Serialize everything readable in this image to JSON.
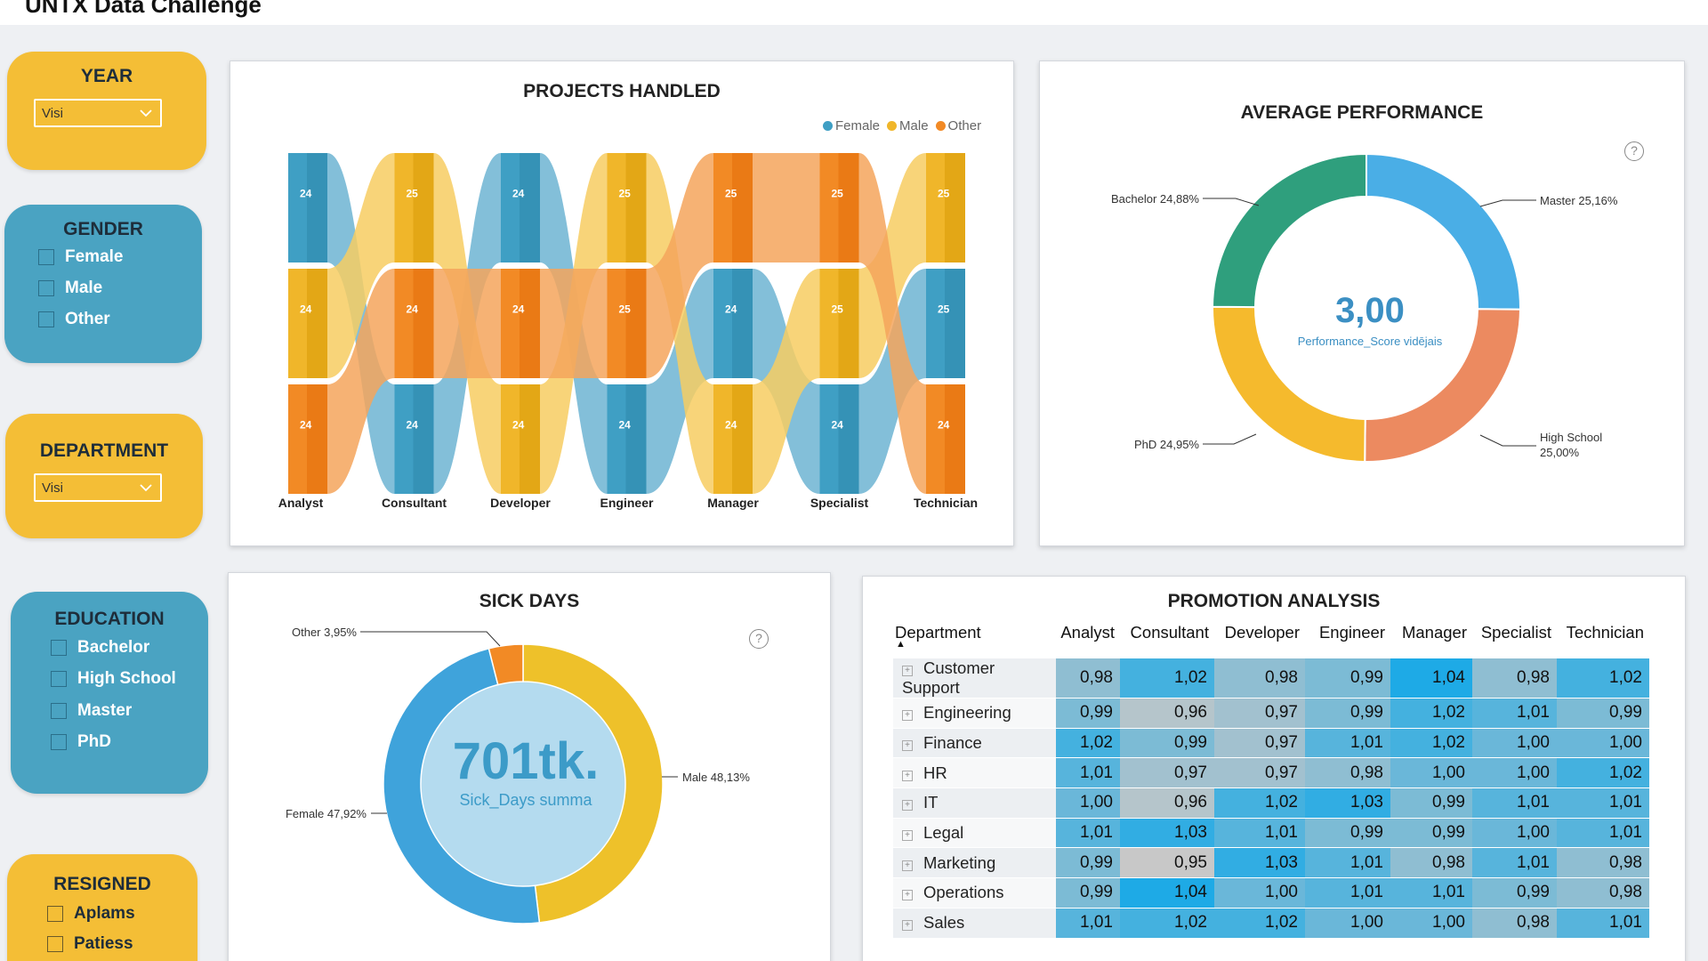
{
  "app": {
    "title": "UNTX Data Challenge"
  },
  "colors": {
    "female": "#3f9fc4",
    "male": "#f0b62a",
    "other": "#f28a25",
    "slicer_yellow": "#f4be36",
    "slicer_blue": "#4aa3c2"
  },
  "slicers": {
    "year": {
      "title": "YEAR",
      "value": "Visi"
    },
    "gender": {
      "title": "GENDER",
      "options": [
        "Female",
        "Male",
        "Other"
      ]
    },
    "department": {
      "title": "DEPARTMENT",
      "value": "Visi"
    },
    "education": {
      "title": "EDUCATION",
      "options": [
        "Bachelor",
        "High School",
        "Master",
        "PhD"
      ]
    },
    "resigned": {
      "title": "RESIGNED",
      "options": [
        "Aplams",
        "Patiess"
      ]
    }
  },
  "projects": {
    "title": "PROJECTS HANDLED",
    "legend": [
      "Female",
      "Male",
      "Other"
    ],
    "categories": [
      "Analyst",
      "Consultant",
      "Developer",
      "Engineer",
      "Manager",
      "Specialist",
      "Technician"
    ],
    "stacks": [
      [
        {
          "g": "female",
          "v": "24"
        },
        {
          "g": "male",
          "v": "24"
        },
        {
          "g": "other",
          "v": "24"
        }
      ],
      [
        {
          "g": "male",
          "v": "25"
        },
        {
          "g": "other",
          "v": "24"
        },
        {
          "g": "female",
          "v": "24"
        }
      ],
      [
        {
          "g": "female",
          "v": "24"
        },
        {
          "g": "other",
          "v": "24"
        },
        {
          "g": "male",
          "v": "24"
        }
      ],
      [
        {
          "g": "male",
          "v": "25"
        },
        {
          "g": "other",
          "v": "25"
        },
        {
          "g": "female",
          "v": "24"
        }
      ],
      [
        {
          "g": "other",
          "v": "25"
        },
        {
          "g": "female",
          "v": "24"
        },
        {
          "g": "male",
          "v": "24"
        }
      ],
      [
        {
          "g": "other",
          "v": "25"
        },
        {
          "g": "male",
          "v": "25"
        },
        {
          "g": "female",
          "v": "24"
        }
      ],
      [
        {
          "g": "male",
          "v": "25"
        },
        {
          "g": "female",
          "v": "25"
        },
        {
          "g": "other",
          "v": "24"
        }
      ]
    ]
  },
  "performance": {
    "title": "AVERAGE PERFORMANCE",
    "center_value": "3,00",
    "center_label": "Performance_Score vidējais",
    "help": "?",
    "slices": [
      {
        "label": "Master",
        "pct": "25,16%",
        "value": 25.16,
        "color": "#4aaee6"
      },
      {
        "label": "High School",
        "pct": "25,00%",
        "value": 25.0,
        "color": "#ec8a60"
      },
      {
        "label": "PhD",
        "pct": "24,95%",
        "value": 24.95,
        "color": "#f5ba2d"
      },
      {
        "label": "Bachelor",
        "pct": "24,88%",
        "value": 24.88,
        "color": "#2f9f7d"
      }
    ]
  },
  "sick_days": {
    "title": "SICK DAYS",
    "center_value": "701tk.",
    "center_label": "Sick_Days summa",
    "help": "?",
    "slices": [
      {
        "label": "Male",
        "pct": "48,13%",
        "value": 48.13,
        "color": "#eec12a"
      },
      {
        "label": "Female",
        "pct": "47,92%",
        "value": 47.92,
        "color": "#3fa3db"
      },
      {
        "label": "Other",
        "pct": "3,95%",
        "value": 3.95,
        "color": "#f28a25"
      }
    ]
  },
  "promotion": {
    "title": "PROMOTION ANALYSIS",
    "row_header": "Department",
    "columns": [
      "Analyst",
      "Consultant",
      "Developer",
      "Engineer",
      "Manager",
      "Specialist",
      "Technician"
    ],
    "rows": [
      {
        "dept": "Customer Support",
        "values": [
          "0,98",
          "1,02",
          "0,98",
          "0,99",
          "1,04",
          "0,98",
          "1,02"
        ]
      },
      {
        "dept": "Engineering",
        "values": [
          "0,99",
          "0,96",
          "0,97",
          "0,99",
          "1,02",
          "1,01",
          "0,99"
        ]
      },
      {
        "dept": "Finance",
        "values": [
          "1,02",
          "0,99",
          "0,97",
          "1,01",
          "1,02",
          "1,00",
          "1,00"
        ]
      },
      {
        "dept": "HR",
        "values": [
          "1,01",
          "0,97",
          "0,97",
          "0,98",
          "1,00",
          "1,00",
          "1,02"
        ]
      },
      {
        "dept": "IT",
        "values": [
          "1,00",
          "0,96",
          "1,02",
          "1,03",
          "0,99",
          "1,01",
          "1,01"
        ]
      },
      {
        "dept": "Legal",
        "values": [
          "1,01",
          "1,03",
          "1,01",
          "0,99",
          "0,99",
          "1,00",
          "1,01"
        ]
      },
      {
        "dept": "Marketing",
        "values": [
          "0,99",
          "0,95",
          "1,03",
          "1,01",
          "0,98",
          "1,01",
          "0,98"
        ]
      },
      {
        "dept": "Operations",
        "values": [
          "0,99",
          "1,04",
          "1,00",
          "1,01",
          "1,01",
          "0,99",
          "0,98"
        ]
      },
      {
        "dept": "Sales",
        "values": [
          "1,01",
          "1,02",
          "1,02",
          "1,00",
          "1,00",
          "0,98",
          "1,01"
        ]
      }
    ]
  }
}
